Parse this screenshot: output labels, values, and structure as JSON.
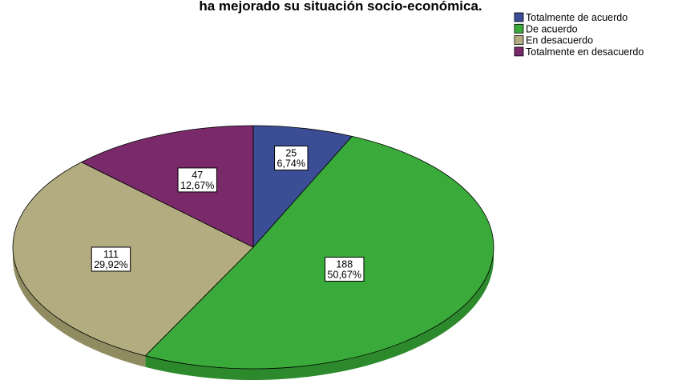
{
  "chart_data": {
    "type": "pie",
    "title": "ha mejorado su situación socio-económica.",
    "legend_position": "top-right",
    "categories": [
      "Totalmente de acuerdo",
      "De acuerdo",
      "En desacuerdo",
      "Totalmente en desacuerdo"
    ],
    "values": [
      25,
      188,
      111,
      47
    ],
    "percent_labels": [
      "6,74%",
      "50,67%",
      "29,92%",
      "12,67%"
    ],
    "colors": [
      "#3B4D94",
      "#3AAA3A",
      "#B2AC80",
      "#7A2A6B"
    ],
    "side_colors": [
      "#2A3870",
      "#2C8A2C",
      "#918B62",
      "#5C1E50"
    ]
  }
}
